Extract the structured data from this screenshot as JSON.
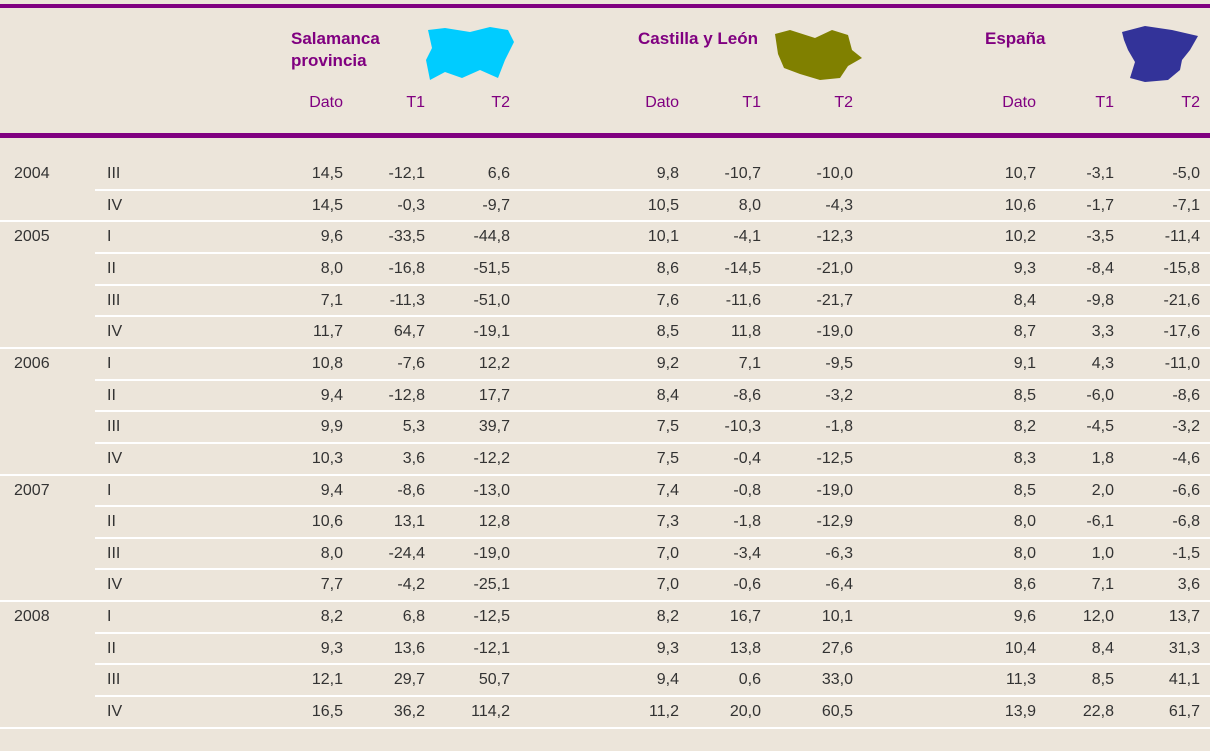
{
  "groups": [
    {
      "title": "Salamanca provincia",
      "columns": [
        "Dato",
        "T1",
        "T2"
      ]
    },
    {
      "title": "Castilla y León",
      "columns": [
        "Dato",
        "T1",
        "T2"
      ]
    },
    {
      "title": "España",
      "columns": [
        "Dato",
        "T1",
        "T2"
      ]
    }
  ],
  "years": [
    {
      "year": "2004",
      "rows": [
        {
          "quarter": "III",
          "values": [
            "14,5",
            "-12,1",
            "6,6",
            "9,8",
            "-10,7",
            "-10,0",
            "10,7",
            "-3,1",
            "-5,0"
          ]
        },
        {
          "quarter": "IV",
          "values": [
            "14,5",
            "-0,3",
            "-9,7",
            "10,5",
            "8,0",
            "-4,3",
            "10,6",
            "-1,7",
            "-7,1"
          ]
        }
      ]
    },
    {
      "year": "2005",
      "rows": [
        {
          "quarter": "I",
          "values": [
            "9,6",
            "-33,5",
            "-44,8",
            "10,1",
            "-4,1",
            "-12,3",
            "10,2",
            "-3,5",
            "-11,4"
          ]
        },
        {
          "quarter": "II",
          "values": [
            "8,0",
            "-16,8",
            "-51,5",
            "8,6",
            "-14,5",
            "-21,0",
            "9,3",
            "-8,4",
            "-15,8"
          ]
        },
        {
          "quarter": "III",
          "values": [
            "7,1",
            "-11,3",
            "-51,0",
            "7,6",
            "-11,6",
            "-21,7",
            "8,4",
            "-9,8",
            "-21,6"
          ]
        },
        {
          "quarter": "IV",
          "values": [
            "11,7",
            "64,7",
            "-19,1",
            "8,5",
            "11,8",
            "-19,0",
            "8,7",
            "3,3",
            "-17,6"
          ]
        }
      ]
    },
    {
      "year": "2006",
      "rows": [
        {
          "quarter": "I",
          "values": [
            "10,8",
            "-7,6",
            "12,2",
            "9,2",
            "7,1",
            "-9,5",
            "9,1",
            "4,3",
            "-11,0"
          ]
        },
        {
          "quarter": "II",
          "values": [
            "9,4",
            "-12,8",
            "17,7",
            "8,4",
            "-8,6",
            "-3,2",
            "8,5",
            "-6,0",
            "-8,6"
          ]
        },
        {
          "quarter": "III",
          "values": [
            "9,9",
            "5,3",
            "39,7",
            "7,5",
            "-10,3",
            "-1,8",
            "8,2",
            "-4,5",
            "-3,2"
          ]
        },
        {
          "quarter": "IV",
          "values": [
            "10,3",
            "3,6",
            "-12,2",
            "7,5",
            "-0,4",
            "-12,5",
            "8,3",
            "1,8",
            "-4,6"
          ]
        }
      ]
    },
    {
      "year": "2007",
      "rows": [
        {
          "quarter": "I",
          "values": [
            "9,4",
            "-8,6",
            "-13,0",
            "7,4",
            "-0,8",
            "-19,0",
            "8,5",
            "2,0",
            "-6,6"
          ]
        },
        {
          "quarter": "II",
          "values": [
            "10,6",
            "13,1",
            "12,8",
            "7,3",
            "-1,8",
            "-12,9",
            "8,0",
            "-6,1",
            "-6,8"
          ]
        },
        {
          "quarter": "III",
          "values": [
            "8,0",
            "-24,4",
            "-19,0",
            "7,0",
            "-3,4",
            "-6,3",
            "8,0",
            "1,0",
            "-1,5"
          ]
        },
        {
          "quarter": "IV",
          "values": [
            "7,7",
            "-4,2",
            "-25,1",
            "7,0",
            "-0,6",
            "-6,4",
            "8,6",
            "7,1",
            "3,6"
          ]
        }
      ]
    },
    {
      "year": "2008",
      "rows": [
        {
          "quarter": "I",
          "values": [
            "8,2",
            "6,8",
            "-12,5",
            "8,2",
            "16,7",
            "10,1",
            "9,6",
            "12,0",
            "13,7"
          ]
        },
        {
          "quarter": "II",
          "values": [
            "9,3",
            "13,6",
            "-12,1",
            "9,3",
            "13,8",
            "27,6",
            "10,4",
            "8,4",
            "31,3"
          ]
        },
        {
          "quarter": "III",
          "values": [
            "12,1",
            "29,7",
            "50,7",
            "9,4",
            "0,6",
            "33,0",
            "11,3",
            "8,5",
            "41,1"
          ]
        },
        {
          "quarter": "IV",
          "values": [
            "16,5",
            "36,2",
            "114,2",
            "11,2",
            "20,0",
            "60,5",
            "13,9",
            "22,8",
            "61,7"
          ]
        }
      ]
    }
  ]
}
